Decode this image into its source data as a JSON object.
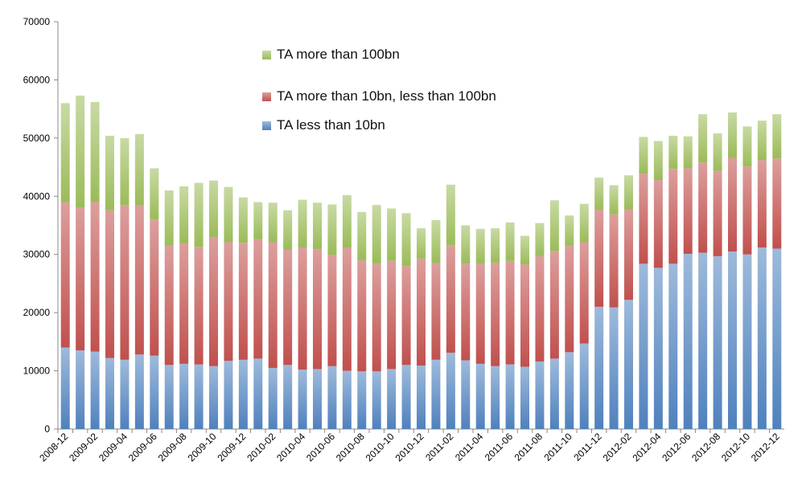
{
  "chart_data": {
    "type": "stacked-bar",
    "categories": [
      "2008-12",
      null,
      "2009-02",
      null,
      "2009-04",
      null,
      "2009-06",
      null,
      "2009-08",
      null,
      "2009-10",
      null,
      "2009-12",
      null,
      "2010-02",
      null,
      "2010-04",
      null,
      "2010-06",
      null,
      "2010-08",
      null,
      "2010-10",
      null,
      "2010-12",
      null,
      "2011-02",
      null,
      "2011-04",
      null,
      "2011-06",
      null,
      "2011-08",
      null,
      "2011-10",
      null,
      "2011-12",
      null,
      "2012-02",
      null,
      "2012-04",
      null,
      "2012-06",
      null,
      "2012-08",
      null,
      "2012-10",
      null,
      "2012-12"
    ],
    "series": [
      {
        "name": "TA less than 10bn",
        "color": "#4f81bd",
        "values": [
          14000,
          13500,
          13300,
          12200,
          11900,
          12800,
          12600,
          11000,
          11200,
          11100,
          10800,
          11700,
          11900,
          12100,
          10500,
          11000,
          10200,
          10300,
          10800,
          10000,
          9900,
          9900,
          10300,
          11000,
          10900,
          11900,
          13100,
          11800,
          11200,
          10800,
          11100,
          10700,
          11600,
          12100,
          13200,
          14700,
          21000,
          20900,
          22200,
          28400,
          27700,
          28400,
          30100,
          30300,
          29700,
          30500,
          30000,
          31200,
          31000
        ]
      },
      {
        "name": "TA more than 10bn, less than 100bn",
        "color": "#c0504d",
        "values": [
          25000,
          24500,
          25700,
          25400,
          26600,
          25600,
          23400,
          20500,
          20700,
          20200,
          22200,
          20400,
          20100,
          20500,
          21600,
          19800,
          21000,
          20600,
          19100,
          21200,
          19100,
          18500,
          18600,
          17100,
          18400,
          16600,
          18500,
          16600,
          17200,
          17800,
          17800,
          17600,
          18100,
          18500,
          18300,
          17400,
          16700,
          16000,
          15500,
          15500,
          15100,
          16300,
          14700,
          15500,
          14700,
          16100,
          15100,
          15000,
          15500
        ]
      },
      {
        "name": "TA more than 100bn",
        "color": "#9bbb59",
        "values": [
          17000,
          19300,
          17200,
          12800,
          11500,
          12300,
          8800,
          9500,
          9800,
          11000,
          9700,
          9500,
          7800,
          6400,
          6800,
          6800,
          8200,
          8000,
          8700,
          9000,
          8300,
          10100,
          9000,
          9000,
          5200,
          7400,
          10400,
          6600,
          6000,
          5900,
          6600,
          4900,
          5700,
          8700,
          5200,
          6600,
          5500,
          5000,
          5900,
          6300,
          6700,
          5700,
          5500,
          8300,
          6400,
          7800,
          6900,
          6800,
          7600
        ]
      }
    ],
    "ylim": [
      0,
      70000
    ],
    "yticks": [
      0,
      10000,
      20000,
      30000,
      40000,
      50000,
      60000,
      70000
    ],
    "grid": false
  }
}
